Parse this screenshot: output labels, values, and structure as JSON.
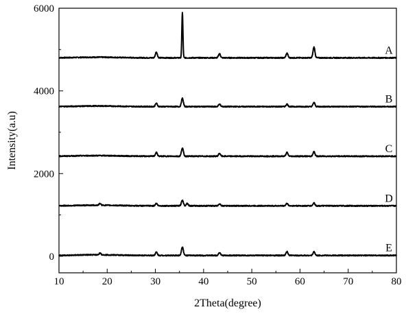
{
  "chart_data": {
    "type": "line",
    "title": "",
    "xlabel": "2Theta(degree)",
    "ylabel": "Intensity(a.u)",
    "xlim": [
      10,
      80
    ],
    "ylim": [
      -400,
      6000
    ],
    "xticks": [
      10,
      20,
      30,
      40,
      50,
      60,
      70,
      80
    ],
    "yticks": [
      0,
      2000,
      4000,
      6000
    ],
    "x_tick_labels": [
      "10",
      "20",
      "30",
      "40",
      "50",
      "60",
      "70",
      "80"
    ],
    "y_tick_labels": [
      "0",
      "2000",
      "4000",
      "6000"
    ],
    "grid": false,
    "legend": "none",
    "line_color": "#000000",
    "series": [
      {
        "name": "A",
        "baseline": 4800,
        "peaks": [
          [
            30.2,
            140
          ],
          [
            35.6,
            1100
          ],
          [
            43.3,
            100
          ],
          [
            57.3,
            110
          ],
          [
            62.9,
            260
          ]
        ]
      },
      {
        "name": "B",
        "baseline": 3620,
        "peaks": [
          [
            30.2,
            80
          ],
          [
            35.6,
            200
          ],
          [
            43.3,
            60
          ],
          [
            57.3,
            60
          ],
          [
            62.9,
            100
          ]
        ]
      },
      {
        "name": "C",
        "baseline": 2420,
        "peaks": [
          [
            30.2,
            90
          ],
          [
            35.6,
            200
          ],
          [
            43.3,
            70
          ],
          [
            57.3,
            90
          ],
          [
            62.9,
            110
          ]
        ]
      },
      {
        "name": "D",
        "baseline": 1220,
        "peaks": [
          [
            18.5,
            40
          ],
          [
            30.2,
            60
          ],
          [
            35.6,
            140
          ],
          [
            36.6,
            60
          ],
          [
            43.3,
            50
          ],
          [
            57.3,
            60
          ],
          [
            62.9,
            70
          ]
        ]
      },
      {
        "name": "E",
        "baseline": 20,
        "peaks": [
          [
            18.5,
            40
          ],
          [
            30.2,
            80
          ],
          [
            35.6,
            210
          ],
          [
            43.3,
            70
          ],
          [
            57.3,
            90
          ],
          [
            62.9,
            90
          ]
        ]
      }
    ]
  }
}
